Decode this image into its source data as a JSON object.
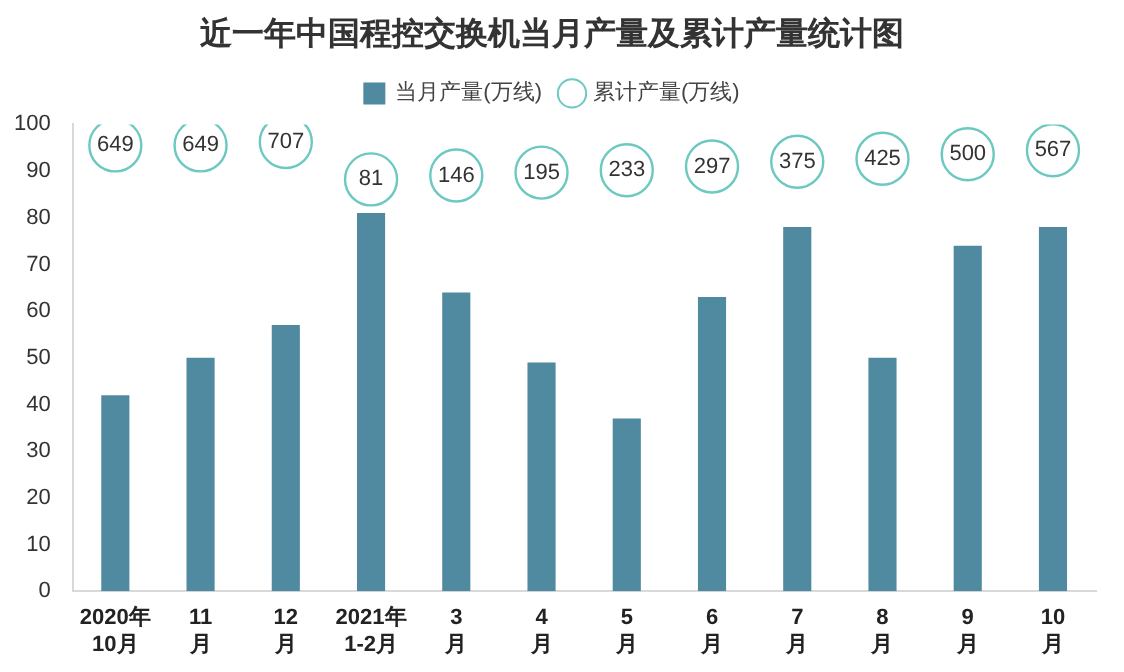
{
  "chart_data": {
    "type": "bar",
    "title": "近一年中国程控交换机当月产量及累计产量统计图",
    "categories": [
      "2020年\n10月",
      "11\n月",
      "12\n月",
      "2021年\n1-2月",
      "3\n月",
      "4\n月",
      "5\n月",
      "6\n月",
      "7\n月",
      "8\n月",
      "9\n月",
      "10\n月"
    ],
    "series": [
      {
        "name": "当月产量(万线)",
        "type": "bar",
        "color": "#4f8aa0",
        "values": [
          42,
          50,
          57,
          81,
          64,
          49,
          37,
          63,
          78,
          50,
          74,
          78
        ]
      },
      {
        "name": "累计产量(万线)",
        "type": "scatter",
        "color": "#6cc9c0",
        "marker": "circle",
        "axis": "y2",
        "values": [
          649,
          649,
          707,
          81,
          146,
          195,
          233,
          297,
          375,
          425,
          500,
          567
        ],
        "value_labels": [
          "649",
          "649",
          "707",
          "81",
          "146",
          "195",
          "233",
          "297",
          "375",
          "425",
          "500",
          "567"
        ]
      }
    ],
    "ylim": [
      0,
      100
    ],
    "yticks": [
      0,
      10,
      20,
      30,
      40,
      50,
      60,
      70,
      80,
      90,
      100
    ],
    "y2lim": [
      -6800,
      1000
    ],
    "grid": false,
    "legend": "top"
  }
}
